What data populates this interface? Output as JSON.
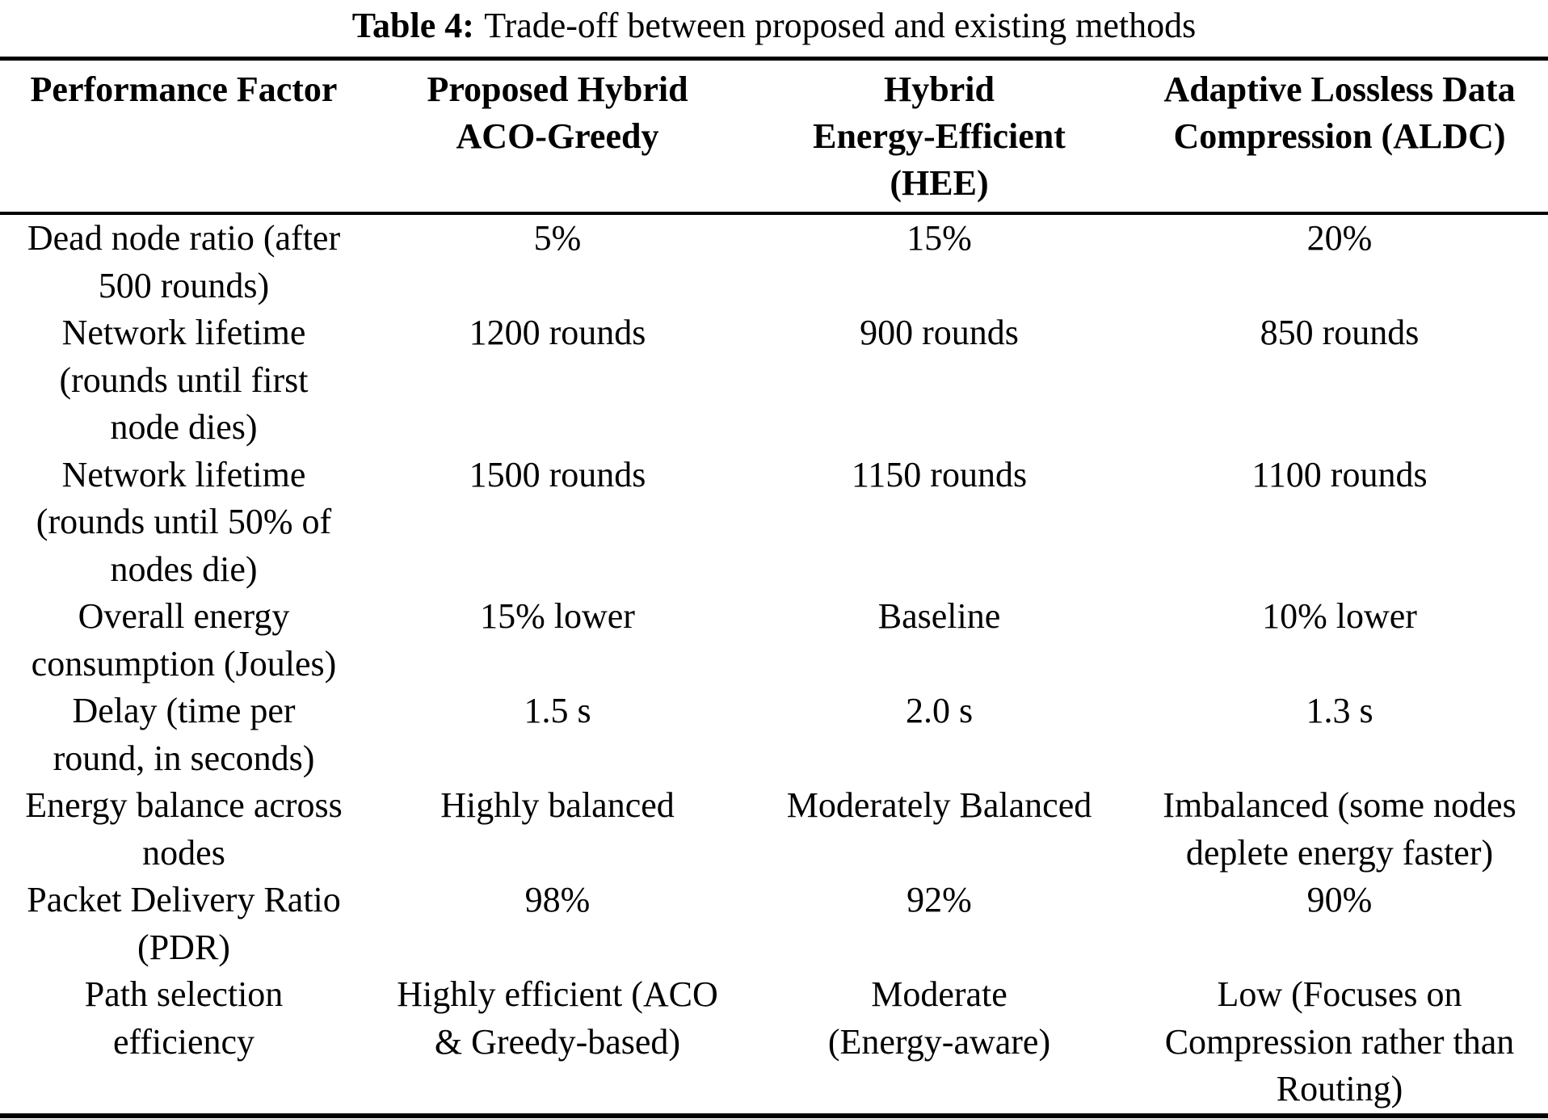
{
  "page": {
    "background_color": "#ffffff",
    "text_color": "#000000"
  },
  "caption": {
    "label": "Table 4:",
    "text": "Trade-off between proposed and existing methods"
  },
  "table": {
    "headers": [
      [
        "Performance Factor"
      ],
      [
        "Proposed Hybrid",
        "ACO-Greedy"
      ],
      [
        "Hybrid",
        "Energy-Efficient",
        "(HEE)"
      ],
      [
        "Adaptive Lossless Data",
        "Compression (ALDC)"
      ]
    ],
    "rows": [
      {
        "cells": [
          [
            "Dead node ratio (after",
            "500 rounds)"
          ],
          [
            "5%"
          ],
          [
            "15%"
          ],
          [
            "20%"
          ]
        ]
      },
      {
        "cells": [
          [
            "Network lifetime",
            "(rounds until first",
            "node dies)"
          ],
          [
            "1200 rounds"
          ],
          [
            "900 rounds"
          ],
          [
            "850 rounds"
          ]
        ]
      },
      {
        "cells": [
          [
            "Network lifetime",
            "(rounds until 50% of",
            "nodes die)"
          ],
          [
            "1500 rounds"
          ],
          [
            "1150 rounds"
          ],
          [
            "1100 rounds"
          ]
        ]
      },
      {
        "cells": [
          [
            "Overall energy",
            "consumption (Joules)"
          ],
          [
            "15% lower"
          ],
          [
            "Baseline"
          ],
          [
            "10% lower"
          ]
        ]
      },
      {
        "cells": [
          [
            "Delay (time per",
            "round, in seconds)"
          ],
          [
            "1.5 s"
          ],
          [
            "2.0 s"
          ],
          [
            "1.3 s"
          ]
        ]
      },
      {
        "cells": [
          [
            "Energy balance across",
            "nodes"
          ],
          [
            "Highly balanced"
          ],
          [
            "Moderately Balanced"
          ],
          [
            "Imbalanced (some nodes",
            "deplete energy faster)"
          ]
        ]
      },
      {
        "cells": [
          [
            "Packet Delivery Ratio",
            "(PDR)"
          ],
          [
            "98%"
          ],
          [
            "92%"
          ],
          [
            "90%"
          ]
        ]
      },
      {
        "cells": [
          [
            "Path selection",
            "efficiency"
          ],
          [
            "Highly efficient (ACO",
            "& Greedy-based)"
          ],
          [
            "Moderate",
            "(Energy-aware)"
          ],
          [
            "Low (Focuses on",
            "Compression rather than",
            "Routing)"
          ]
        ]
      }
    ]
  }
}
